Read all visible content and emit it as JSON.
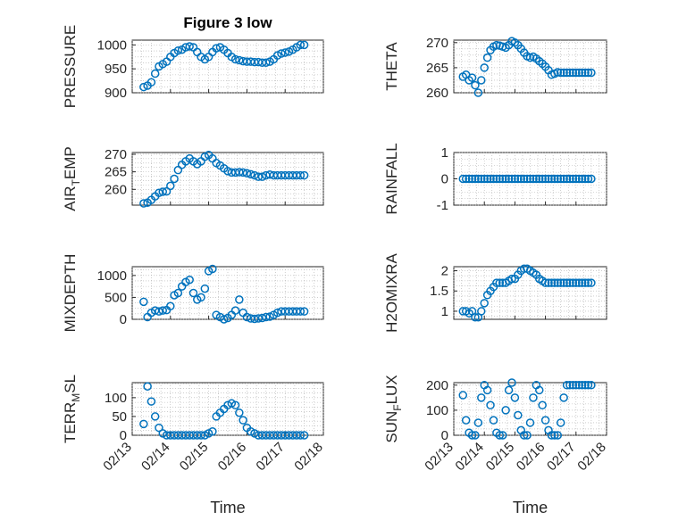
{
  "chart_data": [
    {
      "type": "scatter",
      "title": "Figure 3 low",
      "ylabel_main": "PRESSURE",
      "ylabel_sub": "",
      "ylabel_tail": "",
      "xlabel": "",
      "ylim": [
        900,
        1010
      ],
      "yticks": [
        900,
        950,
        1000
      ],
      "xlim": [
        0,
        5
      ],
      "x_tick_labels": [],
      "x": [
        0.3,
        0.4,
        0.5,
        0.6,
        0.7,
        0.8,
        0.9,
        1.0,
        1.1,
        1.2,
        1.3,
        1.4,
        1.5,
        1.6,
        1.7,
        1.8,
        1.9,
        2.0,
        2.1,
        2.2,
        2.3,
        2.4,
        2.5,
        2.6,
        2.7,
        2.8,
        2.9,
        3.0,
        3.1,
        3.2,
        3.3,
        3.4,
        3.5,
        3.6,
        3.7,
        3.8,
        3.9,
        4.0,
        4.1,
        4.2,
        4.3,
        4.4,
        4.5
      ],
      "y": [
        912,
        915,
        922,
        940,
        955,
        960,
        965,
        975,
        983,
        988,
        990,
        995,
        997,
        995,
        985,
        975,
        970,
        975,
        985,
        993,
        995,
        990,
        983,
        975,
        970,
        968,
        966,
        965,
        965,
        964,
        964,
        963,
        963,
        965,
        970,
        978,
        982,
        984,
        986,
        990,
        995,
        1000,
        1000
      ]
    },
    {
      "type": "scatter",
      "title": "",
      "ylabel_main": "THETA",
      "ylabel_sub": "",
      "ylabel_tail": "",
      "xlabel": "",
      "ylim": [
        260,
        270.5
      ],
      "yticks": [
        260,
        265,
        270
      ],
      "xlim": [
        0,
        5
      ],
      "x_tick_labels": [],
      "x": [
        0.3,
        0.4,
        0.5,
        0.6,
        0.7,
        0.8,
        0.9,
        1.0,
        1.1,
        1.2,
        1.3,
        1.4,
        1.5,
        1.6,
        1.7,
        1.8,
        1.9,
        2.0,
        2.1,
        2.2,
        2.3,
        2.4,
        2.5,
        2.6,
        2.7,
        2.8,
        2.9,
        3.0,
        3.1,
        3.2,
        3.3,
        3.4,
        3.5,
        3.6,
        3.7,
        3.8,
        3.9,
        4.0,
        4.1,
        4.2,
        4.3,
        4.4,
        4.5
      ],
      "y": [
        263.2,
        263.6,
        262.5,
        263.0,
        261.5,
        260.0,
        262.5,
        265.0,
        267.0,
        268.5,
        269.2,
        269.5,
        269.4,
        269.2,
        269.0,
        269.5,
        270.3,
        270.0,
        269.5,
        268.8,
        268.0,
        267.3,
        267.0,
        267.2,
        266.8,
        266.3,
        265.8,
        265.2,
        264.5,
        263.6,
        263.8,
        264.1,
        264.0,
        264.0,
        264.0,
        264.0,
        264.0,
        264.0,
        264.0,
        264.0,
        264.0,
        264.0,
        264.0
      ]
    },
    {
      "type": "scatter",
      "title": "",
      "ylabel_main": "AIR",
      "ylabel_sub": "T",
      "ylabel_tail": "EMP",
      "xlabel": "",
      "ylim": [
        255.5,
        270.5
      ],
      "yticks": [
        260,
        265,
        270
      ],
      "xlim": [
        0,
        5
      ],
      "x_tick_labels": [],
      "x": [
        0.3,
        0.4,
        0.5,
        0.6,
        0.7,
        0.8,
        0.9,
        1.0,
        1.1,
        1.2,
        1.3,
        1.4,
        1.5,
        1.6,
        1.7,
        1.8,
        1.9,
        2.0,
        2.1,
        2.2,
        2.3,
        2.4,
        2.5,
        2.6,
        2.7,
        2.8,
        2.9,
        3.0,
        3.1,
        3.2,
        3.3,
        3.4,
        3.5,
        3.6,
        3.7,
        3.8,
        3.9,
        4.0,
        4.1,
        4.2,
        4.3,
        4.4,
        4.5
      ],
      "y": [
        256.0,
        256.2,
        257.0,
        258.0,
        259.0,
        259.3,
        259.4,
        261.0,
        263.0,
        265.5,
        267.0,
        268.0,
        268.8,
        268.0,
        267.2,
        268.0,
        269.3,
        269.8,
        268.8,
        267.5,
        266.8,
        266.0,
        265.2,
        264.8,
        264.8,
        264.9,
        264.8,
        264.6,
        264.3,
        264.0,
        263.6,
        263.6,
        264.0,
        264.2,
        264.0,
        264.0,
        264.0,
        264.0,
        264.0,
        264.0,
        264.0,
        264.0,
        264.0
      ]
    },
    {
      "type": "scatter",
      "title": "",
      "ylabel_main": "RAINFALL",
      "ylabel_sub": "",
      "ylabel_tail": "",
      "xlabel": "",
      "ylim": [
        -1,
        1
      ],
      "yticks": [
        -1,
        0,
        1
      ],
      "xlim": [
        0,
        5
      ],
      "x_tick_labels": [],
      "x": [
        0.3,
        0.4,
        0.5,
        0.6,
        0.7,
        0.8,
        0.9,
        1.0,
        1.1,
        1.2,
        1.3,
        1.4,
        1.5,
        1.6,
        1.7,
        1.8,
        1.9,
        2.0,
        2.1,
        2.2,
        2.3,
        2.4,
        2.5,
        2.6,
        2.7,
        2.8,
        2.9,
        3.0,
        3.1,
        3.2,
        3.3,
        3.4,
        3.5,
        3.6,
        3.7,
        3.8,
        3.9,
        4.0,
        4.1,
        4.2,
        4.3,
        4.4,
        4.5
      ],
      "y": [
        0,
        0,
        0,
        0,
        0,
        0,
        0,
        0,
        0,
        0,
        0,
        0,
        0,
        0,
        0,
        0,
        0,
        0,
        0,
        0,
        0,
        0,
        0,
        0,
        0,
        0,
        0,
        0,
        0,
        0,
        0,
        0,
        0,
        0,
        0,
        0,
        0,
        0,
        0,
        0,
        0,
        0,
        0
      ]
    },
    {
      "type": "scatter",
      "title": "",
      "ylabel_main": "MIXDEPTH",
      "ylabel_sub": "",
      "ylabel_tail": "",
      "xlabel": "",
      "ylim": [
        0,
        1200
      ],
      "yticks": [
        0,
        500,
        1000
      ],
      "xlim": [
        0,
        5
      ],
      "x_tick_labels": [],
      "x": [
        0.3,
        0.4,
        0.5,
        0.6,
        0.7,
        0.8,
        0.9,
        1.0,
        1.1,
        1.2,
        1.3,
        1.4,
        1.5,
        1.6,
        1.7,
        1.8,
        1.9,
        2.0,
        2.1,
        2.2,
        2.3,
        2.4,
        2.5,
        2.6,
        2.7,
        2.8,
        2.9,
        3.0,
        3.1,
        3.2,
        3.3,
        3.4,
        3.5,
        3.6,
        3.7,
        3.8,
        3.9,
        4.0,
        4.1,
        4.2,
        4.3,
        4.4,
        4.5
      ],
      "y": [
        400,
        50,
        150,
        200,
        180,
        200,
        210,
        300,
        550,
        600,
        750,
        850,
        900,
        600,
        450,
        500,
        700,
        1100,
        1150,
        100,
        50,
        0,
        30,
        100,
        200,
        450,
        150,
        50,
        20,
        10,
        20,
        30,
        50,
        60,
        100,
        150,
        180,
        180,
        180,
        180,
        180,
        180,
        180
      ]
    },
    {
      "type": "scatter",
      "title": "",
      "ylabel_main": "H2OMIXRA",
      "ylabel_sub": "",
      "ylabel_tail": "",
      "xlabel": "",
      "ylim": [
        0.8,
        2.1
      ],
      "yticks": [
        1,
        1.5,
        2
      ],
      "xlim": [
        0,
        5
      ],
      "x_tick_labels": [],
      "x": [
        0.3,
        0.4,
        0.5,
        0.6,
        0.7,
        0.8,
        0.9,
        1.0,
        1.1,
        1.2,
        1.3,
        1.4,
        1.5,
        1.6,
        1.7,
        1.8,
        1.9,
        2.0,
        2.1,
        2.2,
        2.3,
        2.4,
        2.5,
        2.6,
        2.7,
        2.8,
        2.9,
        3.0,
        3.1,
        3.2,
        3.3,
        3.4,
        3.5,
        3.6,
        3.7,
        3.8,
        3.9,
        4.0,
        4.1,
        4.2,
        4.3,
        4.4,
        4.5
      ],
      "y": [
        1.0,
        1.0,
        0.95,
        1.0,
        0.85,
        0.85,
        1.0,
        1.2,
        1.4,
        1.5,
        1.6,
        1.7,
        1.7,
        1.7,
        1.7,
        1.75,
        1.8,
        1.8,
        1.9,
        2.0,
        2.05,
        2.05,
        2.0,
        1.95,
        1.9,
        1.8,
        1.75,
        1.7,
        1.7,
        1.7,
        1.7,
        1.7,
        1.7,
        1.7,
        1.7,
        1.7,
        1.7,
        1.7,
        1.7,
        1.7,
        1.7,
        1.7,
        1.7
      ]
    },
    {
      "type": "scatter",
      "title": "",
      "ylabel_main": "TERR",
      "ylabel_sub": "M",
      "ylabel_tail": "SL",
      "xlabel": "Time",
      "ylim": [
        0,
        140
      ],
      "yticks": [
        0,
        50,
        100
      ],
      "xlim": [
        0,
        5
      ],
      "x_tick_labels": [
        "02/13",
        "02/14",
        "02/15",
        "02/16",
        "02/17",
        "02/18"
      ],
      "x": [
        0.3,
        0.4,
        0.5,
        0.6,
        0.7,
        0.8,
        0.9,
        1.0,
        1.1,
        1.2,
        1.3,
        1.4,
        1.5,
        1.6,
        1.7,
        1.8,
        1.9,
        2.0,
        2.1,
        2.2,
        2.3,
        2.4,
        2.5,
        2.6,
        2.7,
        2.8,
        2.9,
        3.0,
        3.1,
        3.2,
        3.3,
        3.4,
        3.5,
        3.6,
        3.7,
        3.8,
        3.9,
        4.0,
        4.1,
        4.2,
        4.3,
        4.4,
        4.5
      ],
      "y": [
        30,
        130,
        90,
        50,
        20,
        5,
        0,
        0,
        0,
        0,
        0,
        0,
        0,
        0,
        0,
        0,
        0,
        5,
        10,
        50,
        60,
        70,
        80,
        85,
        80,
        60,
        40,
        20,
        10,
        5,
        0,
        0,
        0,
        0,
        0,
        0,
        0,
        0,
        0,
        0,
        0,
        0,
        0
      ]
    },
    {
      "type": "scatter",
      "title": "",
      "ylabel_main": "SUN",
      "ylabel_sub": "F",
      "ylabel_tail": "LUX",
      "xlabel": "Time",
      "ylim": [
        0,
        210
      ],
      "yticks": [
        0,
        100,
        200
      ],
      "xlim": [
        0,
        5
      ],
      "x_tick_labels": [
        "02/13",
        "02/14",
        "02/15",
        "02/16",
        "02/17",
        "02/18"
      ],
      "x": [
        0.3,
        0.4,
        0.5,
        0.6,
        0.7,
        0.8,
        0.9,
        1.0,
        1.1,
        1.2,
        1.3,
        1.4,
        1.5,
        1.6,
        1.7,
        1.8,
        1.9,
        2.0,
        2.1,
        2.2,
        2.3,
        2.4,
        2.5,
        2.6,
        2.7,
        2.8,
        2.9,
        3.0,
        3.1,
        3.2,
        3.3,
        3.4,
        3.5,
        3.6,
        3.7,
        3.8,
        3.9,
        4.0,
        4.1,
        4.2,
        4.3,
        4.4,
        4.5
      ],
      "y": [
        160,
        60,
        10,
        0,
        0,
        50,
        150,
        200,
        180,
        120,
        60,
        10,
        0,
        0,
        100,
        180,
        210,
        150,
        80,
        20,
        0,
        0,
        50,
        150,
        200,
        180,
        120,
        60,
        20,
        0,
        0,
        0,
        50,
        150,
        200,
        200,
        200,
        200,
        200,
        200,
        200,
        200,
        200
      ]
    }
  ],
  "colors": {
    "marker": "#0072BD",
    "axis": "#262626",
    "grid": "#b0b0b0"
  }
}
